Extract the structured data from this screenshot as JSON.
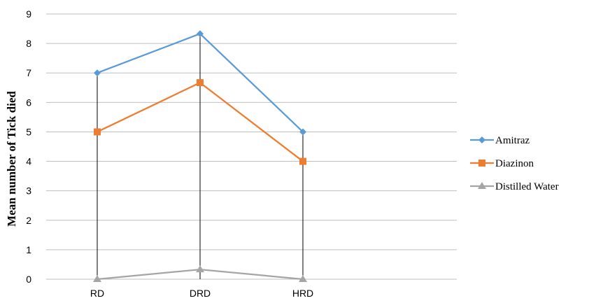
{
  "chart_data": {
    "type": "line",
    "title": "",
    "xlabel": "",
    "ylabel": "Mean number of Tick died",
    "categories": [
      "RD",
      "DRD",
      "HRD"
    ],
    "ylim": [
      0,
      9
    ],
    "yticks": [
      0,
      1,
      2,
      3,
      4,
      5,
      6,
      7,
      8,
      9
    ],
    "grid": true,
    "drop_lines": true,
    "legend_position": "right",
    "series": [
      {
        "name": "Amitraz",
        "values": [
          7,
          8.33,
          5
        ],
        "color": "#5B9BD5",
        "marker": "diamond"
      },
      {
        "name": "Diazinon",
        "values": [
          5,
          6.67,
          4
        ],
        "color": "#ED7D31",
        "marker": "square"
      },
      {
        "name": "Distilled Water",
        "values": [
          0,
          0.33,
          0
        ],
        "color": "#A5A5A5",
        "marker": "triangle"
      }
    ]
  }
}
